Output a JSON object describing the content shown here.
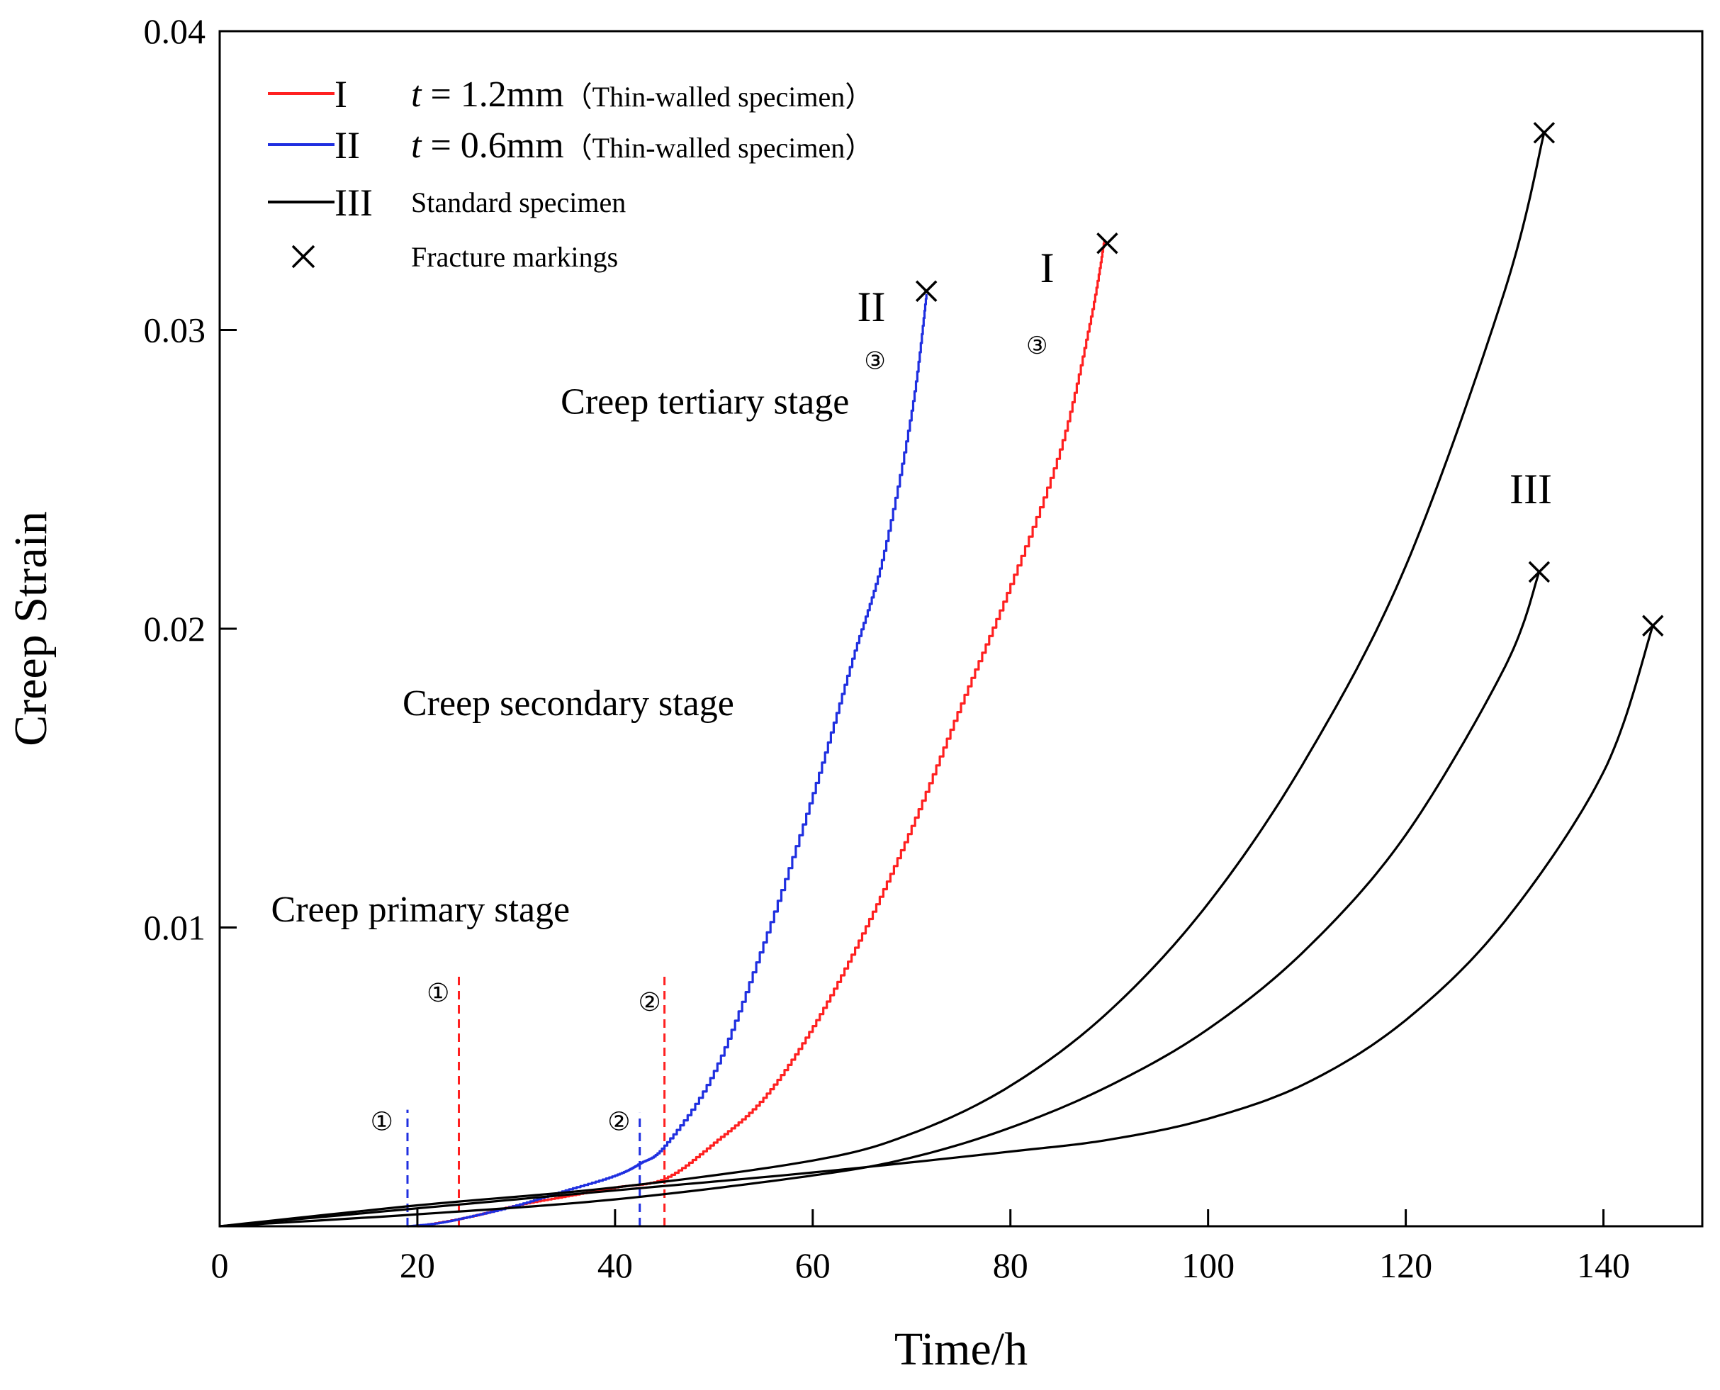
{
  "chart_data": {
    "type": "line",
    "title": "",
    "xlabel": "Time/h",
    "ylabel": "Creep Strain",
    "xlim": [
      0,
      150
    ],
    "ylim": [
      0,
      0.04
    ],
    "xticks": [
      0,
      20,
      40,
      60,
      80,
      100,
      120,
      140
    ],
    "yticks": [
      0.01,
      0.02,
      0.03,
      0.04
    ],
    "ytick_labels": [
      "0.01",
      "0.02",
      "0.03",
      "0.04"
    ],
    "grid": false,
    "legend_position": "top-left",
    "legend": [
      {
        "key": "I",
        "symbol_label": "I",
        "math": "t",
        "text": " = 1.2mm",
        "note": "（Thin-walled specimen）",
        "color": "#ff2020"
      },
      {
        "key": "II",
        "symbol_label": "II",
        "math": "t",
        "text": " = 0.6mm",
        "note": "（Thin-walled specimen）",
        "color": "#1f2fe0"
      },
      {
        "key": "III",
        "symbol_label": "III",
        "math": "",
        "text": "Standard specimen",
        "note": "",
        "color": "#000000"
      },
      {
        "key": "X",
        "symbol_label": "×",
        "math": "",
        "text": "Fracture markings",
        "note": "",
        "color": "#000000"
      }
    ],
    "series": [
      {
        "name": "I",
        "color": "#ff2020",
        "stepped": true,
        "x": [
          20,
          25,
          30,
          35,
          40,
          45,
          50,
          55,
          60,
          65,
          70,
          75,
          80,
          85,
          88,
          89.5
        ],
        "y": [
          0,
          0.0003,
          0.0007,
          0.001,
          0.0013,
          0.0016,
          0.0028,
          0.0043,
          0.0067,
          0.0098,
          0.0134,
          0.0175,
          0.0215,
          0.026,
          0.0302,
          0.033
        ]
      },
      {
        "name": "II",
        "color": "#1f2fe0",
        "stepped": true,
        "x": [
          19,
          22,
          25,
          30,
          35,
          40,
          42.5,
          45,
          50,
          55,
          60,
          64,
          67,
          70,
          71.5
        ],
        "y": [
          0,
          0.0001,
          0.0003,
          0.0007,
          0.0012,
          0.0017,
          0.0021,
          0.0027,
          0.0052,
          0.0095,
          0.0145,
          0.019,
          0.0223,
          0.0273,
          0.0312
        ]
      },
      {
        "name": "III",
        "color": "#000000",
        "stepped": false,
        "x": [
          0,
          20,
          40,
          60,
          70,
          80,
          90,
          100,
          110,
          120,
          130,
          134
        ],
        "y": [
          0,
          0.0007,
          0.0013,
          0.0022,
          0.0031,
          0.0047,
          0.0072,
          0.0108,
          0.0157,
          0.0221,
          0.0313,
          0.0366
        ]
      },
      {
        "name": "III-b",
        "color": "#000000",
        "stepped": false,
        "x": [
          0,
          20,
          40,
          60,
          70,
          80,
          90,
          100,
          110,
          120,
          130,
          133.5
        ],
        "y": [
          0,
          0.0004,
          0.0009,
          0.0017,
          0.0023,
          0.0033,
          0.0047,
          0.0066,
          0.0093,
          0.0131,
          0.0187,
          0.0219
        ]
      },
      {
        "name": "III-c",
        "color": "#000000",
        "stepped": false,
        "x": [
          0,
          20,
          40,
          60,
          80,
          90,
          100,
          110,
          120,
          130,
          140,
          145
        ],
        "y": [
          0,
          0.0006,
          0.0012,
          0.0018,
          0.0025,
          0.0029,
          0.0036,
          0.0048,
          0.0069,
          0.0102,
          0.0152,
          0.0201
        ]
      }
    ],
    "fracture_points": [
      {
        "x": 71.5,
        "y": 0.0313
      },
      {
        "x": 89.8,
        "y": 0.0329
      },
      {
        "x": 134,
        "y": 0.0366
      },
      {
        "x": 133.5,
        "y": 0.0219
      },
      {
        "x": 145,
        "y": 0.0201
      }
    ],
    "stage_lines": [
      {
        "x": 19.0,
        "y_top": 0.0039,
        "color": "#1f2fe0",
        "label": "①",
        "label_x": 16.4,
        "label_y": 0.0035
      },
      {
        "x": 24.2,
        "y_top": 0.0084,
        "color": "#ff2020",
        "label": "①",
        "label_x": 22.1,
        "label_y": 0.0078
      },
      {
        "x": 42.5,
        "y_top": 0.0038,
        "color": "#1f2fe0",
        "label": "②",
        "label_x": 40.4,
        "label_y": 0.0035
      },
      {
        "x": 45.0,
        "y_top": 0.0084,
        "color": "#ff2020",
        "label": "②",
        "label_x": 43.5,
        "label_y": 0.0075
      }
    ],
    "annotations": [
      {
        "text": "Creep primary stage",
        "x": 5.2,
        "y": 0.0102,
        "size": 52
      },
      {
        "text": "Creep secondary stage",
        "x": 18.5,
        "y": 0.0171,
        "size": 52
      },
      {
        "text": "Creep tertiary stage",
        "x": 34.5,
        "y": 0.0272,
        "size": 52
      },
      {
        "text": "II",
        "x": 64.5,
        "y": 0.0303,
        "size": 60
      },
      {
        "text": "I",
        "x": 83.0,
        "y": 0.0316,
        "size": 60
      },
      {
        "text": "III",
        "x": 130.5,
        "y": 0.0242,
        "size": 60
      },
      {
        "text": "③",
        "x": 65.2,
        "y": 0.0287,
        "size": 34
      },
      {
        "text": "③",
        "x": 81.6,
        "y": 0.0292,
        "size": 34
      }
    ]
  }
}
